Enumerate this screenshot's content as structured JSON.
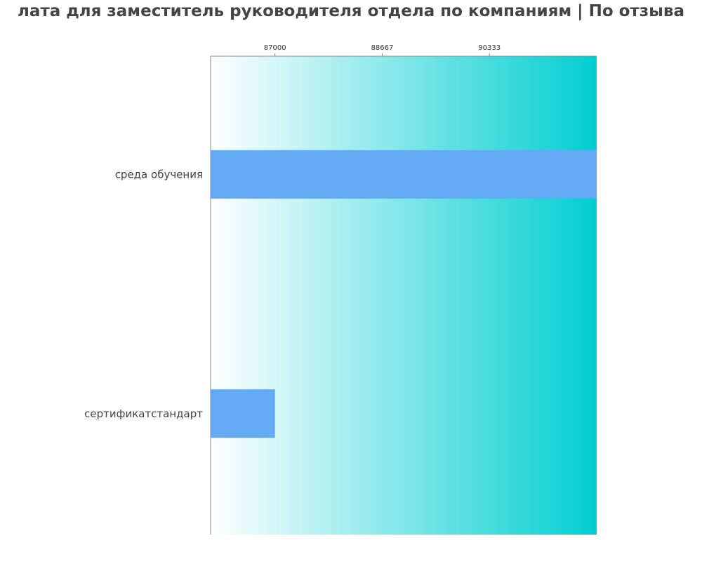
{
  "chart_data": {
    "type": "bar",
    "orientation": "horizontal",
    "title": "лата для заместитель руководителя отдела по компаниям  | По отзыва",
    "categories": [
      "среда обучения",
      "сертификатстандарт"
    ],
    "values": [
      92000,
      87000
    ],
    "xlim": [
      86000,
      92000
    ],
    "xticks": [
      87000,
      88667,
      90333
    ],
    "xtick_labels": [
      "87000",
      "88667",
      "90333"
    ],
    "xaxis_position": "top",
    "grid": false,
    "bar_color": "#63a9f4",
    "background_gradient": [
      "#ffffff",
      "#00ced1"
    ],
    "text_color": "#444444"
  }
}
